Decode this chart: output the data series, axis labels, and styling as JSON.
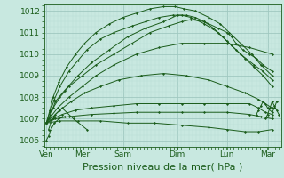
{
  "background_color": "#c8e8e0",
  "grid_color_major": "#a0c8c0",
  "grid_color_minor": "#b8dcd6",
  "line_color": "#1a5c1a",
  "marker_color": "#1a5c1a",
  "xlabel": "Pression niveau de la mer( hPa )",
  "xlabel_fontsize": 8,
  "tick_label_color": "#1a5c1a",
  "ylim": [
    1005.7,
    1012.3
  ],
  "yticks": [
    1006,
    1007,
    1008,
    1009,
    1010,
    1011,
    1012
  ],
  "x_days": [
    "Ven",
    "Mer",
    "Sam",
    "Dim",
    "Lun",
    "Mar"
  ],
  "x_day_positions": [
    0.0,
    0.8,
    1.7,
    2.9,
    4.0,
    4.9
  ],
  "xlim": [
    -0.05,
    5.2
  ],
  "lines": [
    {
      "x": [
        0.0,
        0.05,
        0.15,
        0.3,
        0.5,
        0.8,
        1.1,
        1.5,
        1.9,
        2.3,
        2.7,
        3.0,
        3.2,
        3.5,
        3.8,
        4.0,
        4.1,
        4.2,
        4.35,
        4.5,
        4.65,
        4.8,
        5.0
      ],
      "y": [
        1006.8,
        1007.0,
        1007.5,
        1008.0,
        1008.5,
        1009.0,
        1009.5,
        1010.0,
        1010.5,
        1011.0,
        1011.3,
        1011.5,
        1011.6,
        1011.5,
        1011.2,
        1011.0,
        1010.8,
        1010.5,
        1010.2,
        1010.0,
        1009.8,
        1009.5,
        1009.2
      ]
    },
    {
      "x": [
        0.0,
        0.1,
        0.2,
        0.4,
        0.7,
        1.0,
        1.4,
        1.8,
        2.2,
        2.6,
        2.9,
        3.1,
        3.3,
        3.5,
        3.7,
        3.9,
        4.1,
        4.3,
        4.6,
        4.8,
        5.0
      ],
      "y": [
        1006.8,
        1007.2,
        1007.8,
        1008.3,
        1009.0,
        1009.6,
        1010.2,
        1010.8,
        1011.2,
        1011.5,
        1011.8,
        1011.8,
        1011.7,
        1011.5,
        1011.2,
        1010.8,
        1010.4,
        1010.0,
        1009.5,
        1009.2,
        1008.8
      ]
    },
    {
      "x": [
        0.0,
        0.08,
        0.18,
        0.3,
        0.5,
        0.7,
        0.9,
        1.2,
        1.5,
        1.9,
        2.2,
        2.5,
        2.8,
        3.0,
        3.2,
        3.5,
        3.8,
        4.0,
        4.2,
        4.4,
        4.6,
        4.8,
        5.0
      ],
      "y": [
        1006.8,
        1007.3,
        1007.9,
        1008.5,
        1009.2,
        1009.7,
        1010.2,
        1010.7,
        1011.0,
        1011.3,
        1011.5,
        1011.7,
        1011.8,
        1011.8,
        1011.7,
        1011.4,
        1011.0,
        1010.6,
        1010.2,
        1009.8,
        1009.4,
        1009.0,
        1008.5
      ]
    },
    {
      "x": [
        0.0,
        0.08,
        0.15,
        0.28,
        0.45,
        0.65,
        0.85,
        1.1,
        1.4,
        1.7,
        2.0,
        2.3,
        2.6,
        2.85,
        3.05,
        3.3,
        3.6,
        3.85,
        4.05,
        4.3,
        4.55,
        4.75,
        5.0
      ],
      "y": [
        1006.8,
        1007.4,
        1008.0,
        1008.7,
        1009.4,
        1010.0,
        1010.5,
        1011.0,
        1011.4,
        1011.7,
        1011.9,
        1012.1,
        1012.2,
        1012.2,
        1012.1,
        1012.0,
        1011.7,
        1011.4,
        1011.0,
        1010.5,
        1010.0,
        1009.5,
        1009.0
      ]
    },
    {
      "x": [
        0.0,
        0.1,
        0.25,
        0.5,
        0.8,
        1.1,
        1.5,
        2.0,
        2.5,
        3.0,
        3.5,
        4.0,
        4.5,
        5.0
      ],
      "y": [
        1006.8,
        1007.1,
        1007.5,
        1008.0,
        1008.5,
        1009.0,
        1009.5,
        1010.0,
        1010.3,
        1010.5,
        1010.5,
        1010.5,
        1010.3,
        1010.0
      ]
    },
    {
      "x": [
        0.0,
        0.15,
        0.35,
        0.65,
        1.0,
        1.5,
        2.0,
        2.5,
        3.0,
        3.5,
        4.0,
        4.5,
        4.7,
        4.85,
        5.0
      ],
      "y": [
        1006.8,
        1007.0,
        1007.2,
        1007.4,
        1007.5,
        1007.6,
        1007.7,
        1007.7,
        1007.7,
        1007.7,
        1007.7,
        1007.7,
        1007.5,
        1007.3,
        1007.2
      ]
    },
    {
      "x": [
        0.0,
        0.2,
        0.5,
        1.0,
        1.5,
        2.0,
        2.5,
        3.0,
        3.5,
        4.0,
        4.5,
        4.75,
        5.0
      ],
      "y": [
        1006.8,
        1007.0,
        1007.1,
        1007.2,
        1007.25,
        1007.3,
        1007.3,
        1007.3,
        1007.3,
        1007.3,
        1007.2,
        1007.1,
        1007.0
      ]
    },
    {
      "x": [
        0.0,
        0.3,
        0.7,
        1.2,
        1.8,
        2.4,
        3.0,
        3.6,
        4.0,
        4.4,
        4.7,
        5.0
      ],
      "y": [
        1006.8,
        1006.9,
        1006.9,
        1006.9,
        1006.8,
        1006.8,
        1006.7,
        1006.6,
        1006.5,
        1006.4,
        1006.4,
        1006.5
      ]
    },
    {
      "x": [
        0.0,
        0.15,
        0.3,
        0.55,
        0.85,
        1.2,
        1.6,
        2.1,
        2.6,
        3.1,
        3.6,
        4.0,
        4.4,
        4.7,
        5.0
      ],
      "y": [
        1006.8,
        1007.1,
        1007.4,
        1007.8,
        1008.2,
        1008.5,
        1008.8,
        1009.0,
        1009.1,
        1009.0,
        1008.8,
        1008.5,
        1008.2,
        1007.9,
        1007.5
      ]
    },
    {
      "x": [
        0.05,
        0.1,
        0.2,
        0.35,
        0.6,
        0.9
      ],
      "y": [
        1006.5,
        1006.8,
        1007.2,
        1007.5,
        1007.0,
        1006.5
      ]
    },
    {
      "x": [
        0.0,
        0.05,
        0.1,
        0.18,
        0.28,
        0.4
      ],
      "y": [
        1006.0,
        1006.2,
        1006.5,
        1006.8,
        1007.0,
        1007.1
      ]
    },
    {
      "x": [
        4.65,
        4.7,
        4.75,
        4.8,
        4.85,
        4.9,
        5.0,
        5.05,
        5.1
      ],
      "y": [
        1007.2,
        1007.4,
        1007.6,
        1007.8,
        1007.7,
        1007.5,
        1007.3,
        1007.5,
        1007.8
      ]
    },
    {
      "x": [
        4.85,
        4.9,
        4.95,
        5.0,
        5.05,
        5.1,
        5.15
      ],
      "y": [
        1007.0,
        1007.2,
        1007.5,
        1007.8,
        1007.6,
        1007.4,
        1007.2
      ]
    }
  ]
}
